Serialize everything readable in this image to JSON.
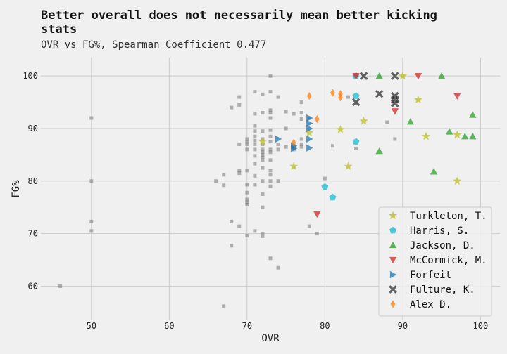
{
  "chart_data": {
    "type": "scatter",
    "title": "Better overall does not necessarily mean better kicking stats",
    "subtitle": "OVR vs FG%, Spearman Coefficient 0.477",
    "xlabel": "OVR",
    "ylabel": "FG%",
    "xlim": [
      43.5,
      102.5
    ],
    "ylim": [
      53.5,
      103.5
    ],
    "xticks": [
      50,
      60,
      70,
      80,
      90,
      100
    ],
    "yticks": [
      60,
      70,
      80,
      90,
      100
    ],
    "grid": true,
    "legend_position": "lower-right",
    "background_points": [
      [
        46,
        60
      ],
      [
        50,
        92
      ],
      [
        50,
        80
      ],
      [
        50,
        72.3
      ],
      [
        50,
        70.5
      ],
      [
        66,
        80
      ],
      [
        67,
        81.2
      ],
      [
        67,
        79.2
      ],
      [
        67,
        56.2
      ],
      [
        68,
        94
      ],
      [
        68,
        72.3
      ],
      [
        68,
        67.7
      ],
      [
        69,
        96
      ],
      [
        69,
        94.5
      ],
      [
        69,
        87
      ],
      [
        69,
        82
      ],
      [
        69,
        81.5
      ],
      [
        69,
        71.4
      ],
      [
        70,
        88
      ],
      [
        70,
        87.5
      ],
      [
        70,
        87
      ],
      [
        70,
        86
      ],
      [
        70,
        82
      ],
      [
        70,
        79.3
      ],
      [
        70,
        77.8
      ],
      [
        70,
        76.5
      ],
      [
        70,
        76
      ],
      [
        70,
        75.5
      ],
      [
        70,
        69.6
      ],
      [
        71,
        97
      ],
      [
        71,
        92.8
      ],
      [
        71,
        90.5
      ],
      [
        71,
        89.5
      ],
      [
        71,
        88.5
      ],
      [
        71,
        87.7
      ],
      [
        71,
        87
      ],
      [
        71,
        86
      ],
      [
        71,
        84.8
      ],
      [
        71,
        83.3
      ],
      [
        71,
        81
      ],
      [
        71,
        79.3
      ],
      [
        71,
        70.5
      ],
      [
        72,
        96.5
      ],
      [
        72,
        93
      ],
      [
        72,
        89.5
      ],
      [
        72,
        88
      ],
      [
        72,
        87
      ],
      [
        72,
        86
      ],
      [
        72,
        85.5
      ],
      [
        72,
        85
      ],
      [
        72,
        84.5
      ],
      [
        72,
        84
      ],
      [
        72,
        82.5
      ],
      [
        72,
        80
      ],
      [
        72,
        77.5
      ],
      [
        72,
        75
      ],
      [
        72,
        70
      ],
      [
        72,
        69.5
      ],
      [
        73,
        100
      ],
      [
        73,
        97
      ],
      [
        73,
        93.5
      ],
      [
        73,
        93
      ],
      [
        73,
        92
      ],
      [
        73,
        89.7
      ],
      [
        73,
        88.5
      ],
      [
        73,
        87.5
      ],
      [
        73,
        86
      ],
      [
        73,
        85.5
      ],
      [
        73,
        84
      ],
      [
        73,
        82
      ],
      [
        73,
        81.2
      ],
      [
        73,
        80
      ],
      [
        73,
        79
      ],
      [
        73,
        65.3
      ],
      [
        74,
        96
      ],
      [
        74,
        87
      ],
      [
        74,
        86
      ],
      [
        74,
        80
      ],
      [
        74,
        63.5
      ],
      [
        75,
        93.2
      ],
      [
        75,
        90
      ],
      [
        75,
        86.5
      ],
      [
        76,
        92.8
      ],
      [
        76,
        86.7
      ],
      [
        76,
        86.2
      ],
      [
        76,
        86
      ],
      [
        77,
        95
      ],
      [
        77,
        93
      ],
      [
        77,
        91.8
      ],
      [
        77,
        88
      ],
      [
        77,
        87
      ],
      [
        77,
        86.5
      ],
      [
        78,
        92
      ],
      [
        78,
        71.4
      ],
      [
        79,
        70
      ],
      [
        80,
        80.5
      ],
      [
        81,
        86.7
      ],
      [
        83,
        96
      ],
      [
        84,
        86.2
      ],
      [
        88,
        91.2
      ],
      [
        89,
        88
      ]
    ],
    "series": [
      {
        "name": "Turkleton, T.",
        "marker": "star",
        "color": "#bcbd22",
        "points": [
          [
            72,
            87.5
          ],
          [
            76,
            82.8
          ],
          [
            78,
            89.2
          ],
          [
            82,
            89.8
          ],
          [
            83,
            82.8
          ],
          [
            85,
            91.4
          ],
          [
            90,
            100
          ],
          [
            92,
            95.5
          ],
          [
            93,
            88.5
          ],
          [
            97,
            88.8
          ],
          [
            97,
            80
          ]
        ]
      },
      {
        "name": "Harris, S.",
        "marker": "pentagon",
        "color": "#17becf",
        "points": [
          [
            80,
            78.9
          ],
          [
            81,
            76.9
          ],
          [
            84,
            96.2
          ],
          [
            84,
            87.5
          ],
          [
            84,
            100
          ]
        ]
      },
      {
        "name": "Jackson, D.",
        "marker": "triangle-up",
        "color": "#2ca02c",
        "points": [
          [
            87,
            100
          ],
          [
            87,
            85.7
          ],
          [
            91,
            91.3
          ],
          [
            94,
            81.8
          ],
          [
            95,
            100
          ],
          [
            96,
            89.4
          ],
          [
            98,
            88.5
          ],
          [
            99,
            92.6
          ],
          [
            99,
            88.5
          ]
        ]
      },
      {
        "name": "McCormick, M.",
        "marker": "triangle-down",
        "color": "#d62728",
        "points": [
          [
            79,
            73.7
          ],
          [
            84,
            100
          ],
          [
            89,
            93.3
          ],
          [
            92,
            100
          ],
          [
            97,
            96.2
          ]
        ]
      },
      {
        "name": "Forfeit",
        "marker": "triangle-right",
        "color": "#1f77b4",
        "points": [
          [
            74,
            88
          ],
          [
            76,
            86.7
          ],
          [
            76,
            86.2
          ],
          [
            78,
            92
          ],
          [
            78,
            91
          ],
          [
            78,
            90
          ],
          [
            78,
            88
          ],
          [
            78,
            86.3
          ]
        ]
      },
      {
        "name": "Fulture, K.",
        "marker": "x",
        "color": "#333333",
        "points": [
          [
            84,
            95
          ],
          [
            85,
            100
          ],
          [
            87,
            96.6
          ],
          [
            89,
            100
          ],
          [
            89,
            96.2
          ],
          [
            89,
            95.5
          ],
          [
            89,
            94.8
          ]
        ]
      },
      {
        "name": "Alex D.",
        "marker": "diamond",
        "color": "#ff7f0e",
        "points": [
          [
            76,
            87.3
          ],
          [
            78,
            96.2
          ],
          [
            79,
            91.8
          ],
          [
            81,
            96.8
          ],
          [
            82,
            96.6
          ],
          [
            82,
            95.9
          ]
        ]
      }
    ]
  }
}
